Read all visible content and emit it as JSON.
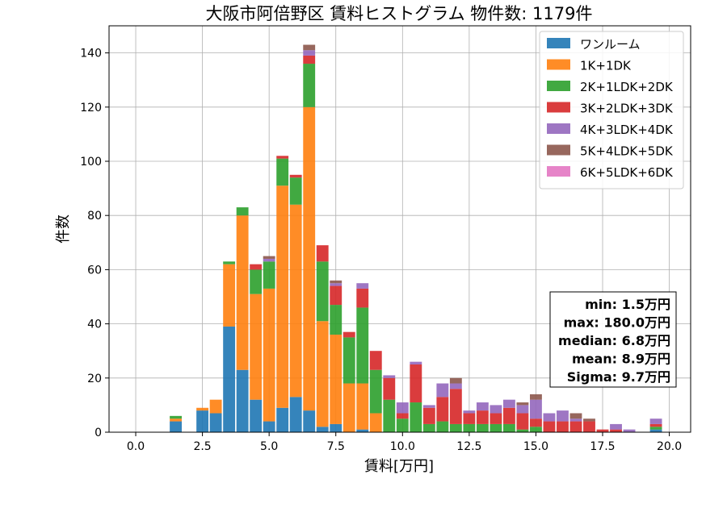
{
  "chart_data": {
    "type": "bar",
    "stacked": true,
    "title": "大阪市阿倍野区 賃料ヒストグラム 物件数: 1179件",
    "xlabel": "賃料[万円]",
    "ylabel": "件数",
    "xlim": [
      -1.0,
      20.8
    ],
    "ylim": [
      0,
      150
    ],
    "grid": true,
    "legend_position": "top-right",
    "bin_width": 0.5,
    "xticks": [
      0.0,
      2.5,
      5.0,
      7.5,
      10.0,
      12.5,
      15.0,
      17.5,
      20.0
    ],
    "xtick_labels": [
      "0.0",
      "2.5",
      "5.0",
      "7.5",
      "10.0",
      "12.5",
      "15.0",
      "17.5",
      "20.0"
    ],
    "yticks": [
      0,
      20,
      40,
      60,
      80,
      100,
      120,
      140
    ],
    "ytick_labels": [
      "0",
      "20",
      "40",
      "60",
      "80",
      "100",
      "120",
      "140"
    ],
    "x": [
      1.5,
      2.5,
      3.0,
      3.5,
      4.0,
      4.5,
      5.0,
      5.5,
      6.0,
      6.5,
      7.0,
      7.5,
      8.0,
      8.5,
      9.0,
      9.5,
      10.0,
      10.5,
      11.0,
      11.5,
      12.0,
      12.5,
      13.0,
      13.5,
      14.0,
      14.5,
      15.0,
      15.5,
      16.0,
      16.5,
      17.0,
      17.5,
      18.0,
      18.5,
      19.5
    ],
    "series": [
      {
        "name": "ワンルーム",
        "color": "#1f77b4",
        "values": [
          4,
          8,
          7,
          39,
          23,
          12,
          4,
          9,
          13,
          8,
          2,
          3,
          0,
          1,
          0,
          0,
          0,
          0,
          0,
          0,
          0,
          0,
          0,
          0,
          0,
          0,
          0,
          0,
          0,
          0,
          0,
          0,
          0,
          0,
          1
        ]
      },
      {
        "name": "1K+1DK",
        "color": "#ff7f0e",
        "values": [
          1,
          1,
          5,
          23,
          57,
          39,
          49,
          82,
          71,
          112,
          39,
          33,
          18,
          17,
          7,
          0,
          0,
          0,
          0,
          0,
          0,
          0,
          0,
          0,
          0,
          0,
          0,
          0,
          0,
          0,
          0,
          0,
          0,
          0,
          0
        ]
      },
      {
        "name": "2K+1LDK+2DK",
        "color": "#2ca02c",
        "values": [
          1,
          0,
          0,
          1,
          3,
          9,
          10,
          10,
          10,
          16,
          22,
          11,
          17,
          28,
          16,
          12,
          5,
          11,
          3,
          4,
          3,
          3,
          3,
          3,
          3,
          1,
          2,
          0,
          0,
          0,
          0,
          0,
          0,
          0,
          1
        ]
      },
      {
        "name": "3K+2LDK+3DK",
        "color": "#d62728",
        "values": [
          0,
          0,
          0,
          0,
          0,
          2,
          0,
          1,
          1,
          3,
          6,
          7,
          2,
          7,
          7,
          8,
          2,
          14,
          6,
          9,
          13,
          4,
          5,
          4,
          6,
          6,
          3,
          4,
          4,
          4,
          4,
          1,
          1,
          0,
          1
        ]
      },
      {
        "name": "4K+3LDK+4DK",
        "color": "#9467bd",
        "values": [
          0,
          0,
          0,
          0,
          0,
          0,
          1,
          0,
          0,
          2,
          0,
          1,
          0,
          2,
          0,
          1,
          4,
          1,
          1,
          5,
          2,
          1,
          3,
          3,
          3,
          3,
          7,
          3,
          4,
          1,
          0,
          0,
          2,
          1,
          2
        ]
      },
      {
        "name": "5K+4LDK+5DK",
        "color": "#8c564b",
        "values": [
          0,
          0,
          0,
          0,
          0,
          0,
          1,
          0,
          0,
          2,
          0,
          1,
          0,
          0,
          0,
          0,
          0,
          0,
          0,
          0,
          2,
          0,
          0,
          0,
          0,
          1,
          2,
          0,
          0,
          2,
          1,
          0,
          0,
          0,
          0
        ]
      },
      {
        "name": "6K+5LDK+6DK",
        "color": "#e377c2",
        "values": [
          0,
          0,
          0,
          0,
          0,
          0,
          0,
          0,
          0,
          0,
          0,
          0,
          0,
          0,
          0,
          0,
          0,
          0,
          0,
          0,
          0,
          0,
          0,
          0,
          0,
          0,
          0,
          0,
          0,
          0,
          0,
          0,
          0,
          0,
          0
        ]
      }
    ],
    "stats_box": {
      "lines": [
        "min: 1.5万円",
        "max: 180.0万円",
        "median: 6.8万円",
        "mean: 8.9万円",
        "Sigma: 9.7万円"
      ]
    }
  }
}
